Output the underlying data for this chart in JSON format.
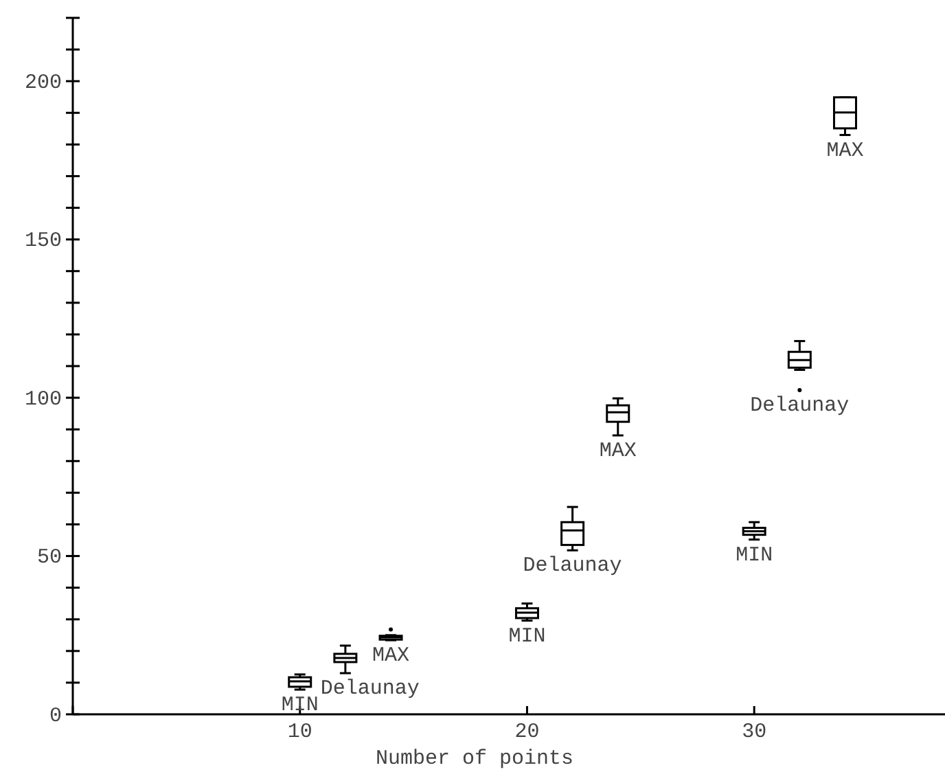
{
  "chart_data": {
    "type": "box",
    "xlabel": "Number of points",
    "xlim": [
      0,
      38.4
    ],
    "xticks": [
      {
        "value": 0,
        "label": null
      },
      10,
      20,
      30
    ],
    "ylim": [
      0,
      220
    ],
    "yticks": [
      0,
      {
        "value": 10,
        "label": null
      },
      {
        "value": 20,
        "label": null
      },
      {
        "value": 30,
        "label": null
      },
      {
        "value": 40,
        "label": null
      },
      50,
      {
        "value": 60,
        "label": null
      },
      {
        "value": 70,
        "label": null
      },
      {
        "value": 80,
        "label": null
      },
      {
        "value": 90,
        "label": null
      },
      100,
      {
        "value": 110,
        "label": null
      },
      {
        "value": 120,
        "label": null
      },
      {
        "value": 130,
        "label": null
      },
      {
        "value": 140,
        "label": null
      },
      150,
      {
        "value": 160,
        "label": null
      },
      {
        "value": 170,
        "label": null
      },
      {
        "value": 180,
        "label": null
      },
      {
        "value": 190,
        "label": null
      },
      200,
      {
        "value": 210,
        "label": null
      },
      {
        "value": 220,
        "label": null
      }
    ],
    "grid": false,
    "legend": false,
    "series": [
      {
        "name": "MIN",
        "color": "#000000",
        "x": [
          10,
          20,
          30
        ],
        "boxes": [
          {
            "low": 7.8,
            "q1": 8.7,
            "median": 10.4,
            "q3": 11.7,
            "high": 12.6
          },
          {
            "low": 29.6,
            "q1": 30.4,
            "median": 32.1,
            "q3": 33.5,
            "high": 35
          },
          {
            "low": 55.2,
            "q1": 56.7,
            "median": 57.8,
            "q3": 58.9,
            "high": 60.7
          }
        ]
      },
      {
        "name": "Delaunay",
        "color": "#000000",
        "x": [
          12,
          22,
          32
        ],
        "boxes": [
          {
            "low": 13,
            "q1": 16.5,
            "median": 17.8,
            "q3": 19.1,
            "high": 21.7
          },
          {
            "low": 51.8,
            "q1": 53.5,
            "median": 58.1,
            "q3": 60.7,
            "high": 65.5
          },
          {
            "low": 108.8,
            "q1": 109.5,
            "median": 111.9,
            "q3": 114.5,
            "high": 117.9,
            "outliers": [
              102.4
            ]
          }
        ]
      },
      {
        "name": "MAX",
        "color": "#000000",
        "x": [
          14,
          24,
          34
        ],
        "boxes": [
          {
            "low": 23.4,
            "q1": 23.6,
            "median": 24.3,
            "q3": 24.8,
            "high": 25,
            "outliers": [
              26.8
            ]
          },
          {
            "low": 88.1,
            "q1": 92.4,
            "median": 95.4,
            "q3": 97.6,
            "high": 99.8
          },
          {
            "low": 183,
            "q1": 185.1,
            "median": 190.1,
            "q3": 194.9,
            "high": 194.9
          }
        ]
      }
    ]
  }
}
